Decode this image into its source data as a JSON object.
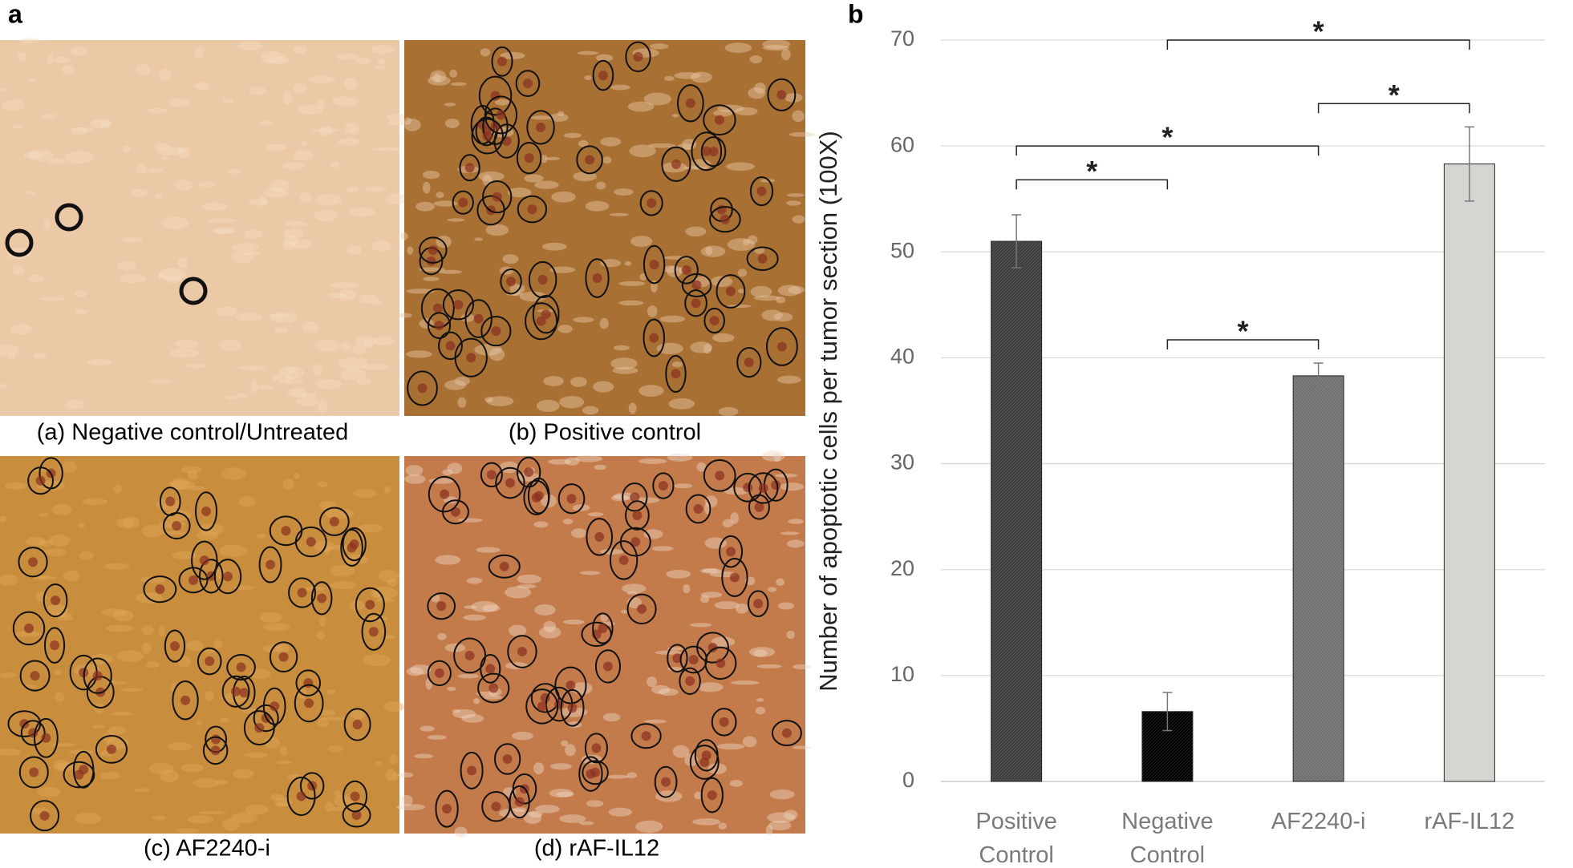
{
  "panel_labels": [
    "a",
    "b"
  ],
  "images": [
    {
      "caption": "(a) Negative control/Untreated"
    },
    {
      "caption": "(b) Positive control"
    },
    {
      "caption": "(c) AF2240-i"
    },
    {
      "caption": "(d) rAF-IL12"
    }
  ],
  "chart_data": {
    "type": "bar",
    "ylabel": "Number of apoptotic cells per tumor section (100X)",
    "categories": [
      "Positive Control",
      "Negative Control",
      "AF2240-i",
      "rAF-IL12"
    ],
    "values": [
      51,
      6.6,
      38.3,
      58.3
    ],
    "errors": [
      2.5,
      1.8,
      1.2,
      3.5
    ],
    "colors": [
      "#3d3d3d",
      "#000000",
      "#707070",
      "#d3d3cf"
    ],
    "ylim": [
      0,
      70
    ],
    "yticks": [
      0,
      10,
      20,
      30,
      40,
      50,
      60,
      70
    ],
    "grid": true,
    "annotations": [
      {
        "text": "*",
        "from": "Negative Control",
        "to": "rAF-IL12",
        "y": 70
      },
      {
        "text": "*",
        "from": "AF2240-i",
        "to": "rAF-IL12",
        "y": 64
      },
      {
        "text": "*",
        "from": "Positive Control",
        "to": "AF2240-i",
        "y": 60
      },
      {
        "text": "*",
        "from": "Positive Control",
        "to": "Negative Control",
        "y": 56.8
      },
      {
        "text": "*",
        "from": "Negative Control",
        "to": "AF2240-i",
        "y": 41.7
      }
    ]
  }
}
